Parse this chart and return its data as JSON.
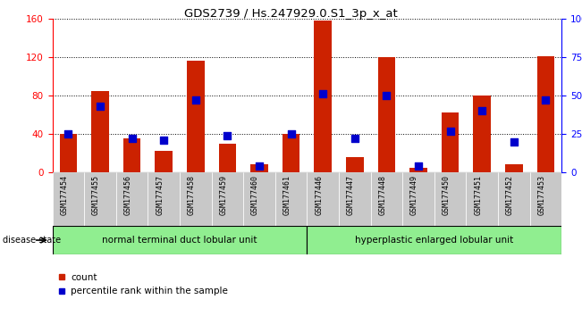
{
  "title": "GDS2739 / Hs.247929.0.S1_3p_x_at",
  "samples": [
    "GSM177454",
    "GSM177455",
    "GSM177456",
    "GSM177457",
    "GSM177458",
    "GSM177459",
    "GSM177460",
    "GSM177461",
    "GSM177446",
    "GSM177447",
    "GSM177448",
    "GSM177449",
    "GSM177450",
    "GSM177451",
    "GSM177452",
    "GSM177453"
  ],
  "count_values": [
    40,
    85,
    35,
    22,
    116,
    30,
    8,
    40,
    158,
    16,
    120,
    5,
    62,
    80,
    8,
    121
  ],
  "percentile_values": [
    25,
    43,
    22,
    21,
    47,
    24,
    4,
    25,
    51,
    22,
    50,
    4,
    27,
    40,
    20,
    47
  ],
  "group1_label": "normal terminal duct lobular unit",
  "group2_label": "hyperplastic enlarged lobular unit",
  "group1_count": 8,
  "group2_count": 8,
  "ylim_left": [
    0,
    160
  ],
  "ylim_right": [
    0,
    100
  ],
  "yticks_left": [
    0,
    40,
    80,
    120,
    160
  ],
  "yticks_right": [
    0,
    25,
    50,
    75,
    100
  ],
  "yticklabels_right": [
    "0",
    "25",
    "50",
    "75",
    "100%"
  ],
  "bar_color": "#cc2200",
  "percentile_color": "#0000cc",
  "bg_color": "#ffffff",
  "xticklabel_bg": "#c8c8c8",
  "group_bg": "#90ee90",
  "legend_count_label": "count",
  "legend_percentile_label": "percentile rank within the sample",
  "bar_width": 0.55,
  "percentile_marker_size": 36
}
